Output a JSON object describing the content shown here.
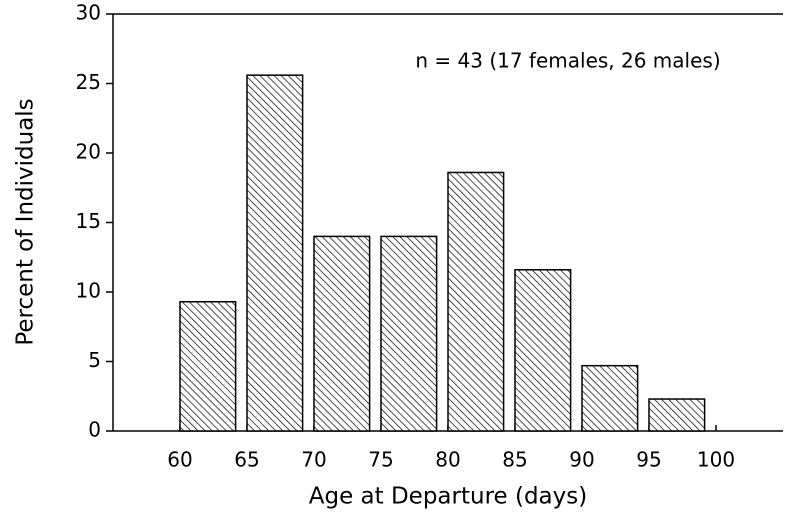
{
  "chart_data": {
    "type": "histogram",
    "annotation": "n = 43 (17 females, 26 males)",
    "x_label": "Age at Departure (days)",
    "y_label": "Percent of Individuals",
    "bins": [
      60,
      65,
      70,
      75,
      80,
      85,
      90,
      95,
      100
    ],
    "values": [
      9.3,
      25.6,
      14.0,
      14.0,
      18.6,
      11.6,
      4.7,
      2.3
    ],
    "color": "#000000",
    "xlim": [
      55,
      105
    ],
    "xticks": [
      60,
      65,
      70,
      75,
      80,
      85,
      90,
      95,
      100
    ],
    "ylim": [
      0,
      30
    ],
    "yticks": [
      0,
      5,
      10,
      15,
      20,
      25,
      30
    ]
  }
}
